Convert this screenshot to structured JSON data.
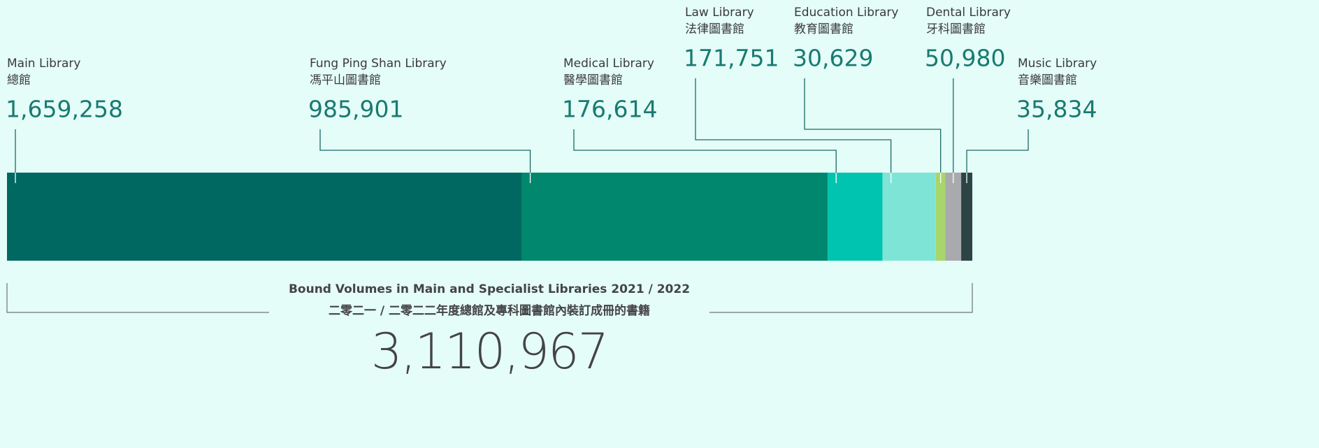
{
  "chart_data": {
    "type": "stacked-bar",
    "title": "Bound Volumes in Main and Specialist Libraries 2021 / 2022",
    "title_zh": "二零二一 / 二零二二年度總館及專科圖書館內裝訂成冊的書籍",
    "total": "3,110,967",
    "categories": [
      "Main Library",
      "Fung Ping Shan Library",
      "Medical Library",
      "Law Library",
      "Education Library",
      "Dental Library",
      "Music Library"
    ],
    "categories_zh": [
      "總館",
      "馮平山圖書館",
      "醫學圖書館",
      "法律圖書館",
      "教育圖書館",
      "牙科圖書館",
      "音樂圖書館"
    ],
    "values": [
      1659258,
      985901,
      176614,
      171751,
      30629,
      50980,
      35834
    ],
    "value_labels": [
      "1,659,258",
      "985,901",
      "176,614",
      "171,751",
      "30,629",
      "50,980",
      "35,834"
    ],
    "colors": [
      "#006860",
      "#00876e",
      "#00c4b0",
      "#7ee5d6",
      "#a8d66b",
      "#a8aaad",
      "#2d4444"
    ]
  }
}
